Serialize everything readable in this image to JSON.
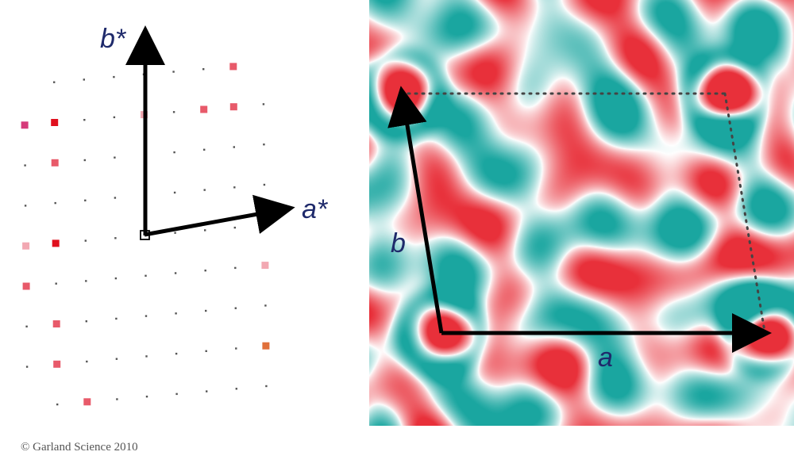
{
  "reciprocal_lattice": {
    "axis_a_star_label": "a*",
    "axis_b_star_label": "b*",
    "colors": {
      "axis": "#000000",
      "label": "#1f2a6b",
      "lattice_dot": "#555555",
      "spot_strong": "#e0101e",
      "spot_medium": "#e85a6a",
      "spot_weak": "#f2a8b2",
      "spot_magenta": "#d63a7a",
      "spot_orange": "#e0703a"
    },
    "spots": [
      {
        "h": -3,
        "k": 3,
        "intensity": "strong"
      },
      {
        "h": -3,
        "k": 0,
        "intensity": "strong"
      },
      {
        "h": -3,
        "k": 2,
        "intensity": "medium"
      },
      {
        "h": 2,
        "k": 3,
        "intensity": "medium"
      },
      {
        "h": 3,
        "k": 4,
        "intensity": "medium"
      },
      {
        "h": 3,
        "k": 3,
        "intensity": "medium"
      },
      {
        "h": 0,
        "k": 3,
        "intensity": "weak"
      },
      {
        "h": -4,
        "k": 3,
        "intensity": "magenta"
      },
      {
        "h": -4,
        "k": 0,
        "intensity": "weak"
      },
      {
        "h": -4,
        "k": -1,
        "intensity": "medium"
      },
      {
        "h": -3,
        "k": -2,
        "intensity": "medium"
      },
      {
        "h": -3,
        "k": -3,
        "intensity": "medium"
      },
      {
        "h": -2,
        "k": -4,
        "intensity": "medium"
      },
      {
        "h": 4,
        "k": -1,
        "intensity": "weak"
      },
      {
        "h": 4,
        "k": -3,
        "intensity": "orange"
      },
      {
        "h": 2,
        "k": -5,
        "intensity": "strong"
      },
      {
        "h": 1,
        "k": -5,
        "intensity": "weak"
      },
      {
        "h": 3,
        "k": -5,
        "intensity": "medium"
      }
    ]
  },
  "density_map": {
    "axis_a_label": "a",
    "axis_b_label": "b",
    "colors": {
      "positive": "#e8303a",
      "negative": "#1aa6a0",
      "background": "#ffffff",
      "axis": "#000000",
      "unit_cell_outline": "#444444"
    }
  },
  "credit": "© Garland Science 2010"
}
